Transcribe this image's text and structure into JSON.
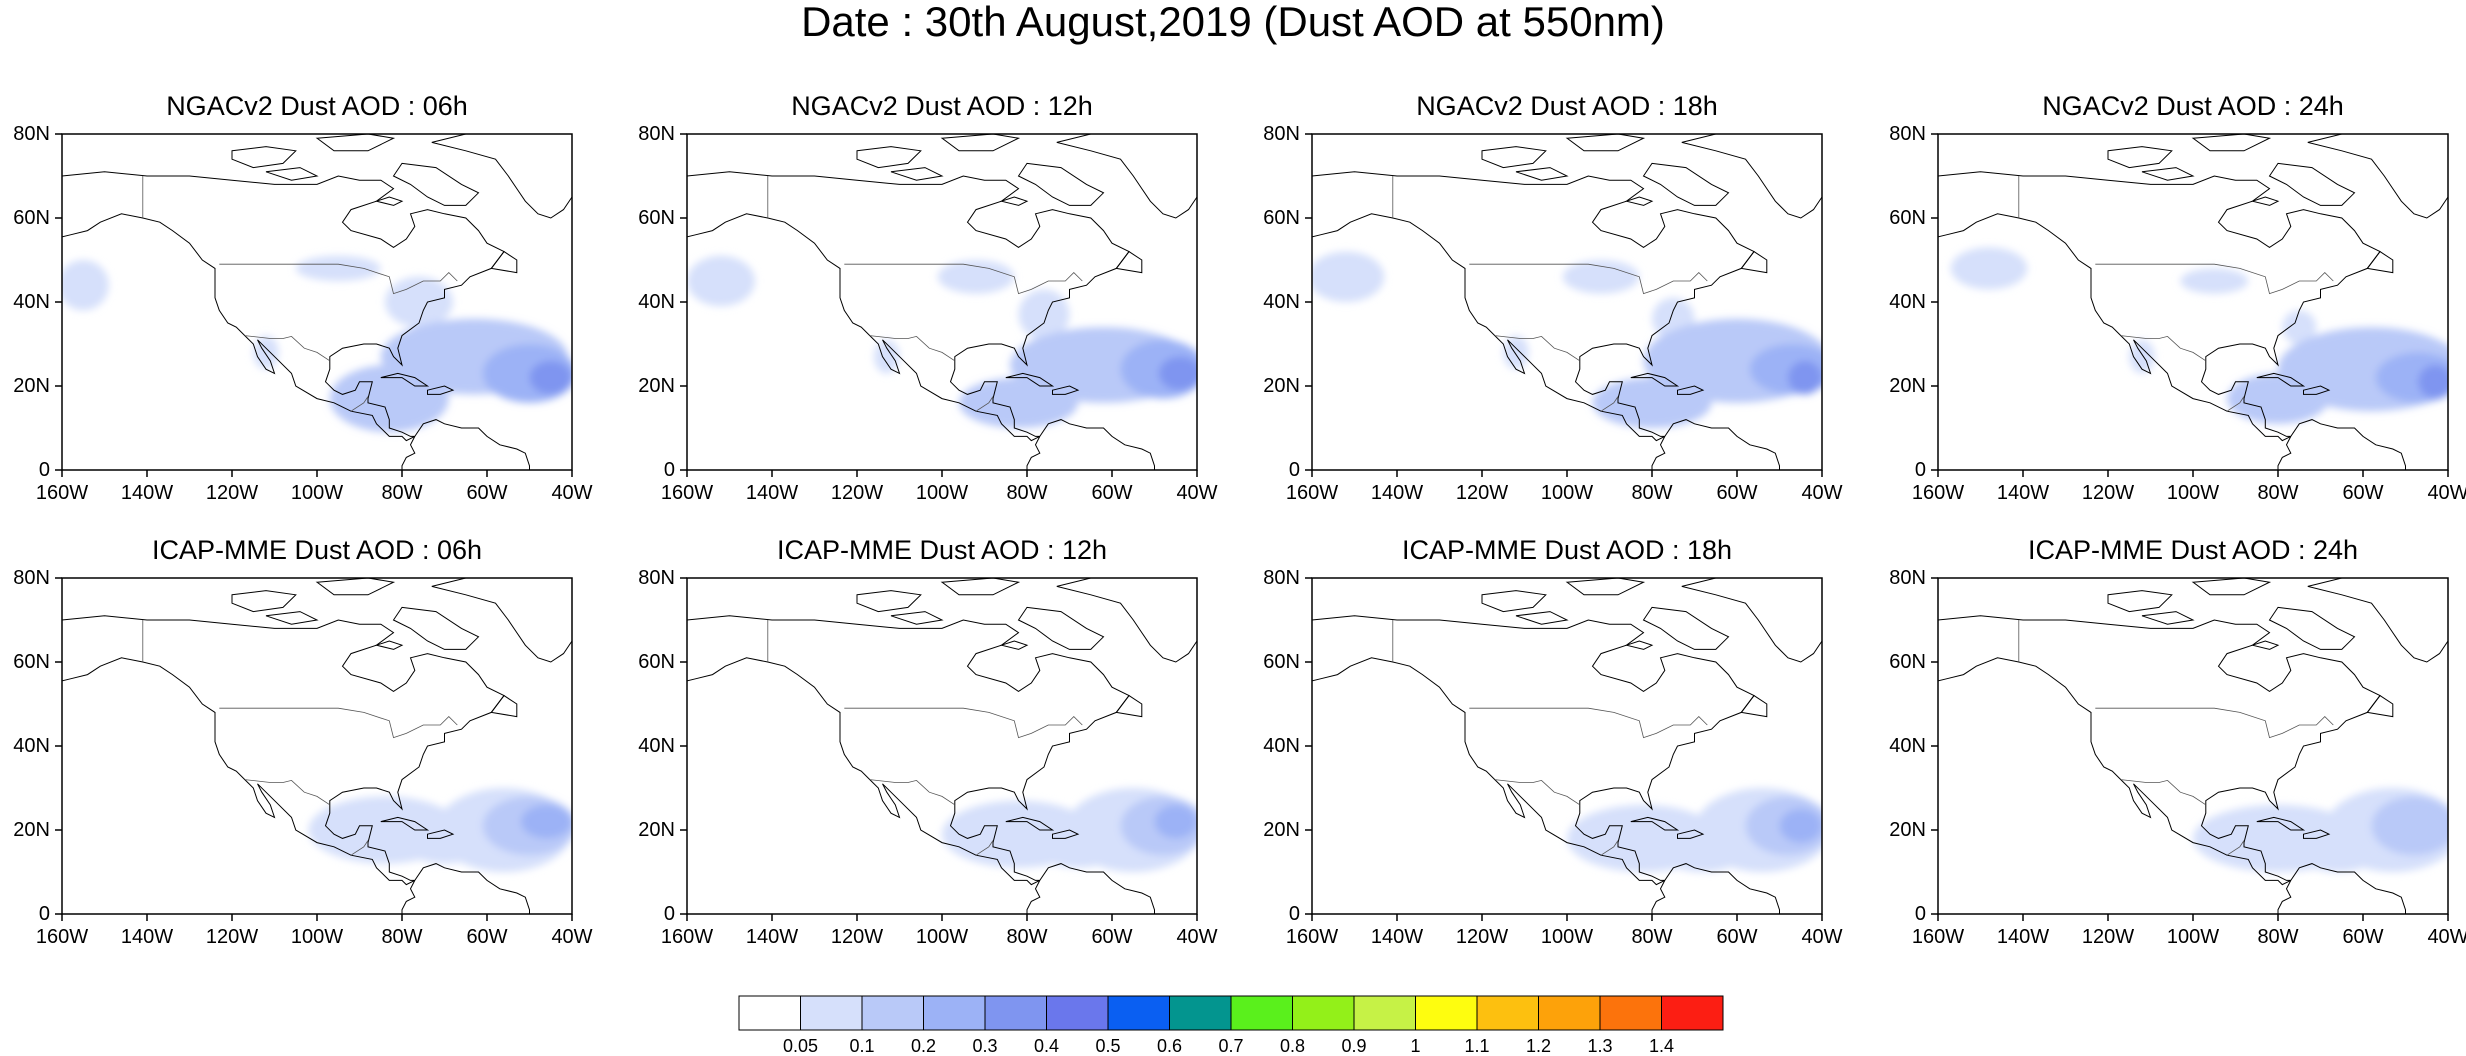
{
  "title": "Date : 30th August,2019 (Dust AOD at 550nm)",
  "colors": {
    "land_outline": "#000000",
    "levels": [
      "#ffffff",
      "#d6e0fb",
      "#b9c9f8",
      "#9cb2f6",
      "#7f95f0",
      "#6a77ec",
      "#0a5ff2",
      "#03958f",
      "#5af01c",
      "#93f019",
      "#c6f246",
      "#fefd0f",
      "#fdc00f",
      "#fda20a",
      "#fc730c",
      "#fc1e13"
    ]
  },
  "axes": {
    "y_ticks": [
      "80N",
      "60N",
      "40N",
      "20N",
      "0"
    ],
    "x_ticks": [
      "160W",
      "140W",
      "120W",
      "100W",
      "80W",
      "60W",
      "40W"
    ],
    "lon_range": [
      -160,
      -40
    ],
    "lat_range": [
      0,
      80
    ]
  },
  "panels": [
    {
      "title": "NGACv2 Dust AOD : 06h",
      "blobs": [
        {
          "lon": -155,
          "lat": 44,
          "rx": 6,
          "ry": 6,
          "level": 1
        },
        {
          "lon": -95,
          "lat": 48,
          "rx": 10,
          "ry": 3,
          "level": 1
        },
        {
          "lon": -76,
          "lat": 40,
          "rx": 8,
          "ry": 6,
          "level": 1
        },
        {
          "lon": -63,
          "lat": 27,
          "rx": 22,
          "ry": 9,
          "level": 2
        },
        {
          "lon": -50,
          "lat": 23,
          "rx": 11,
          "ry": 7,
          "level": 3
        },
        {
          "lon": -45,
          "lat": 22,
          "rx": 5,
          "ry": 4,
          "level": 4
        },
        {
          "lon": -83,
          "lat": 17,
          "rx": 14,
          "ry": 8,
          "level": 2
        },
        {
          "lon": -112,
          "lat": 28,
          "rx": 3,
          "ry": 4,
          "level": 1
        }
      ]
    },
    {
      "title": "NGACv2 Dust AOD : 12h",
      "blobs": [
        {
          "lon": -152,
          "lat": 45,
          "rx": 8,
          "ry": 6,
          "level": 1
        },
        {
          "lon": -92,
          "lat": 46,
          "rx": 9,
          "ry": 4,
          "level": 1
        },
        {
          "lon": -76,
          "lat": 37,
          "rx": 6,
          "ry": 6,
          "level": 1
        },
        {
          "lon": -62,
          "lat": 25,
          "rx": 22,
          "ry": 9,
          "level": 2
        },
        {
          "lon": -48,
          "lat": 24,
          "rx": 10,
          "ry": 7,
          "level": 3
        },
        {
          "lon": -44,
          "lat": 23,
          "rx": 5,
          "ry": 4,
          "level": 4
        },
        {
          "lon": -82,
          "lat": 16,
          "rx": 14,
          "ry": 6,
          "level": 2
        },
        {
          "lon": -113,
          "lat": 27,
          "rx": 3,
          "ry": 4,
          "level": 1
        }
      ]
    },
    {
      "title": "NGACv2 Dust AOD : 18h",
      "blobs": [
        {
          "lon": -152,
          "lat": 46,
          "rx": 9,
          "ry": 6,
          "level": 1
        },
        {
          "lon": -92,
          "lat": 46,
          "rx": 9,
          "ry": 4,
          "level": 1
        },
        {
          "lon": -75,
          "lat": 36,
          "rx": 5,
          "ry": 5,
          "level": 1
        },
        {
          "lon": -60,
          "lat": 26,
          "rx": 22,
          "ry": 10,
          "level": 2
        },
        {
          "lon": -47,
          "lat": 24,
          "rx": 10,
          "ry": 6,
          "level": 3
        },
        {
          "lon": -44,
          "lat": 22,
          "rx": 4,
          "ry": 4,
          "level": 4
        },
        {
          "lon": -80,
          "lat": 16,
          "rx": 14,
          "ry": 6,
          "level": 2
        },
        {
          "lon": -112,
          "lat": 28,
          "rx": 3,
          "ry": 4,
          "level": 1
        }
      ]
    },
    {
      "title": "NGACv2 Dust AOD : 24h",
      "blobs": [
        {
          "lon": -148,
          "lat": 48,
          "rx": 9,
          "ry": 5,
          "level": 1
        },
        {
          "lon": -95,
          "lat": 45,
          "rx": 8,
          "ry": 3,
          "level": 1
        },
        {
          "lon": -75,
          "lat": 34,
          "rx": 4,
          "ry": 4,
          "level": 1
        },
        {
          "lon": -58,
          "lat": 24,
          "rx": 22,
          "ry": 10,
          "level": 2
        },
        {
          "lon": -47,
          "lat": 22,
          "rx": 10,
          "ry": 6,
          "level": 3
        },
        {
          "lon": -43,
          "lat": 21,
          "rx": 4,
          "ry": 4,
          "level": 4
        },
        {
          "lon": -80,
          "lat": 17,
          "rx": 12,
          "ry": 6,
          "level": 2
        },
        {
          "lon": -112,
          "lat": 27,
          "rx": 3,
          "ry": 4,
          "level": 1
        }
      ]
    },
    {
      "title": "ICAP-MME Dust AOD : 06h",
      "blobs": [
        {
          "lon": -84,
          "lat": 20,
          "rx": 18,
          "ry": 8,
          "level": 1
        },
        {
          "lon": -56,
          "lat": 20,
          "rx": 16,
          "ry": 10,
          "level": 1
        },
        {
          "lon": -50,
          "lat": 21,
          "rx": 11,
          "ry": 7,
          "level": 2
        },
        {
          "lon": -46,
          "lat": 22,
          "rx": 6,
          "ry": 4,
          "level": 3
        },
        {
          "lon": -70,
          "lat": 17,
          "rx": 10,
          "ry": 5,
          "level": 1
        }
      ]
    },
    {
      "title": "ICAP-MME Dust AOD : 12h",
      "blobs": [
        {
          "lon": -82,
          "lat": 19,
          "rx": 18,
          "ry": 8,
          "level": 1
        },
        {
          "lon": -55,
          "lat": 20,
          "rx": 16,
          "ry": 10,
          "level": 1
        },
        {
          "lon": -48,
          "lat": 21,
          "rx": 10,
          "ry": 7,
          "level": 2
        },
        {
          "lon": -45,
          "lat": 22,
          "rx": 5,
          "ry": 4,
          "level": 3
        },
        {
          "lon": -68,
          "lat": 16,
          "rx": 10,
          "ry": 5,
          "level": 1
        }
      ]
    },
    {
      "title": "ICAP-MME Dust AOD : 18h",
      "blobs": [
        {
          "lon": -82,
          "lat": 18,
          "rx": 18,
          "ry": 8,
          "level": 1
        },
        {
          "lon": -54,
          "lat": 20,
          "rx": 16,
          "ry": 10,
          "level": 1
        },
        {
          "lon": -48,
          "lat": 21,
          "rx": 10,
          "ry": 7,
          "level": 2
        },
        {
          "lon": -45,
          "lat": 21,
          "rx": 5,
          "ry": 4,
          "level": 3
        },
        {
          "lon": -68,
          "lat": 15,
          "rx": 10,
          "ry": 5,
          "level": 1
        }
      ]
    },
    {
      "title": "ICAP-MME Dust AOD : 24h",
      "blobs": [
        {
          "lon": -80,
          "lat": 18,
          "rx": 20,
          "ry": 8,
          "level": 1
        },
        {
          "lon": -53,
          "lat": 20,
          "rx": 16,
          "ry": 10,
          "level": 1
        },
        {
          "lon": -48,
          "lat": 21,
          "rx": 10,
          "ry": 7,
          "level": 2
        },
        {
          "lon": -66,
          "lat": 15,
          "rx": 10,
          "ry": 5,
          "level": 1
        }
      ]
    }
  ],
  "colorbar": {
    "labels": [
      "0.05",
      "0.1",
      "0.2",
      "0.3",
      "0.4",
      "0.5",
      "0.6",
      "0.7",
      "0.8",
      "0.9",
      "1",
      "1.1",
      "1.2",
      "1.3",
      "1.4"
    ]
  }
}
